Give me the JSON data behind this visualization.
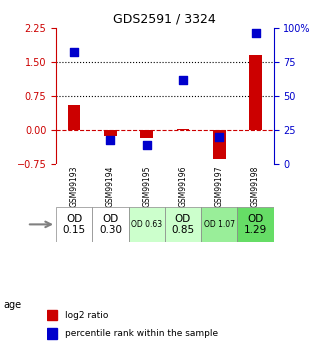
{
  "title": "GDS2591 / 3324",
  "samples": [
    "GSM99193",
    "GSM99194",
    "GSM99195",
    "GSM99196",
    "GSM99197",
    "GSM99198"
  ],
  "log2_ratio": [
    0.55,
    -0.12,
    -0.18,
    0.02,
    -0.62,
    1.65
  ],
  "percentile_rank": [
    0.82,
    0.18,
    0.14,
    0.62,
    0.2,
    0.96
  ],
  "bar_color": "#cc0000",
  "dot_color": "#0000cc",
  "ylim_left": [
    -0.75,
    2.25
  ],
  "ylim_right": [
    0,
    100
  ],
  "yticks_left": [
    -0.75,
    0,
    0.75,
    1.5,
    2.25
  ],
  "yticks_right": [
    0,
    25,
    50,
    75,
    100
  ],
  "hlines": [
    0.75,
    1.5
  ],
  "hline_zero_color": "#cc0000",
  "hline_dotted_color": "#000000",
  "age_labels": [
    "OD\n0.15",
    "OD\n0.30",
    "OD 0.63",
    "OD\n0.85",
    "OD 1.07",
    "OD\n1.29"
  ],
  "age_bg_colors": [
    "#ffffff",
    "#ffffff",
    "#ccffcc",
    "#ccffcc",
    "#99ee99",
    "#66dd66"
  ],
  "age_fontsize_big": [
    true,
    true,
    false,
    true,
    false,
    true
  ],
  "xlabel": "age",
  "legend_red": "log2 ratio",
  "legend_blue": "percentile rank within the sample",
  "background_color": "#ffffff",
  "plot_bg": "#f0f0f0"
}
